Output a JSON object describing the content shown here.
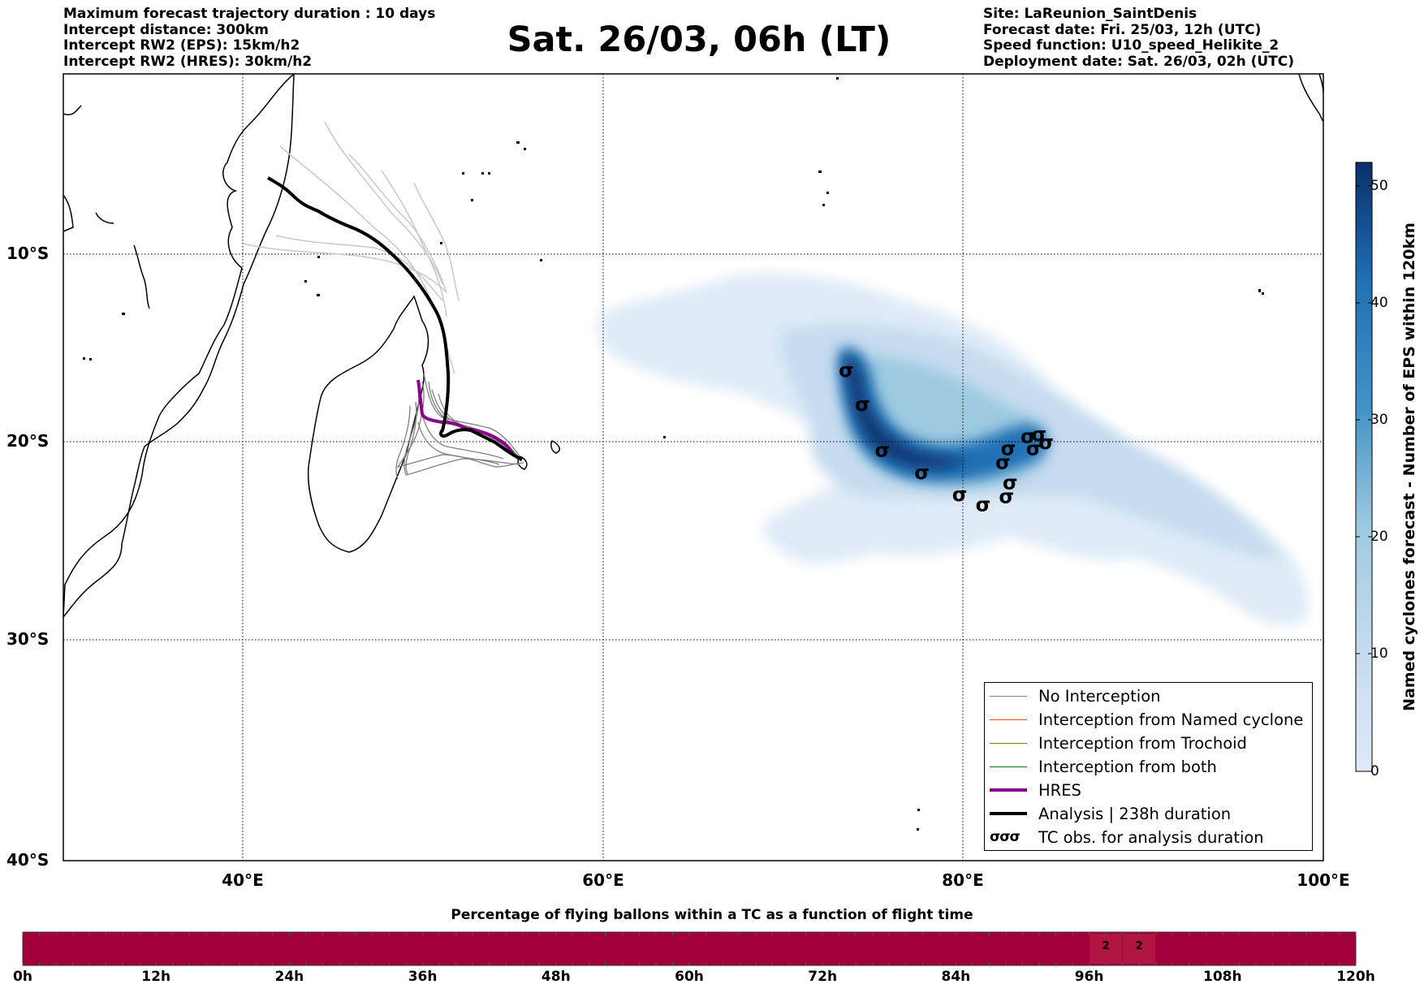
{
  "header": {
    "left": [
      "Maximum forecast trajectory duration : 10 days",
      "Intercept distance: 300km",
      "Intercept RW2 (EPS):  15km/h2",
      "Intercept RW2 (HRES): 30km/h2"
    ],
    "title": "Sat. 26/03, 06h (LT)",
    "right": [
      "Site: LaReunion_SaintDenis",
      "Forecast date: Fri. 25/03, 12h (UTC)",
      "Speed function: U10_speed_Helikite_2",
      "Deployment date: Sat. 26/03, 02h (UTC)"
    ]
  },
  "map": {
    "lat_labels": [
      "10°S",
      "20°S",
      "30°S",
      "40°S"
    ],
    "lon_labels": [
      "40°E",
      "60°E",
      "80°E",
      "100°E"
    ],
    "extent": {
      "lon": [
        30,
        100
      ],
      "lat": [
        -40,
        -0.8
      ]
    },
    "colors": {
      "analysis": "#000000",
      "hres": "#8b008b",
      "eps_gray": "#808080",
      "light_gray": "#c8c8c8"
    },
    "tc_observations": [
      {
        "lon": 73.5,
        "lat": -15.6
      },
      {
        "lon": 74.4,
        "lat": -17.3
      },
      {
        "lon": 75.5,
        "lat": -19.6
      },
      {
        "lon": 77.7,
        "lat": -20.7
      },
      {
        "lon": 79.8,
        "lat": -21.8
      },
      {
        "lon": 81.1,
        "lat": -22.3
      },
      {
        "lon": 82.4,
        "lat": -21.9
      },
      {
        "lon": 82.6,
        "lat": -21.2
      },
      {
        "lon": 82.2,
        "lat": -20.2
      },
      {
        "lon": 82.5,
        "lat": -19.5
      },
      {
        "lon": 83.6,
        "lat": -18.9
      },
      {
        "lon": 83.9,
        "lat": -19.5
      },
      {
        "lon": 84.2,
        "lat": -18.8
      },
      {
        "lon": 84.6,
        "lat": -19.2
      }
    ]
  },
  "legend": {
    "items": [
      {
        "label": "No Interception",
        "color": "#808080",
        "width": 1
      },
      {
        "label": "Interception from Named cyclone",
        "color": "#ff4500",
        "width": 1
      },
      {
        "label": "Interception from Trochoid",
        "color": "#808000",
        "width": 1
      },
      {
        "label": "Interception from both",
        "color": "#008000",
        "width": 1
      },
      {
        "label": "HRES",
        "color": "#8b008b",
        "width": 4
      },
      {
        "label": "Analysis | 238h duration",
        "color": "#000000",
        "width": 4
      },
      {
        "label": "TC obs. for analysis duration",
        "symbol": "σσσ"
      }
    ]
  },
  "colorbar": {
    "title": "Named cyclones forecast - Number of EPS within 120km",
    "ticks": [
      "50",
      "40",
      "30",
      "20",
      "10",
      "0"
    ],
    "range": [
      0,
      52
    ],
    "color_low": "#deebf7",
    "color_high": "#08306b"
  },
  "timebar": {
    "title": "Percentage of flying ballons within a TC as a function of flight time",
    "labels": [
      "0h",
      "12h",
      "24h",
      "36h",
      "48h",
      "60h",
      "72h",
      "84h",
      "96h",
      "108h",
      "120h"
    ],
    "range_hours": [
      0,
      120
    ],
    "cells": [
      {
        "hour": 97.5,
        "value": "2"
      },
      {
        "hour": 100.5,
        "value": "2"
      }
    ],
    "fill_color": "#a0003c",
    "highlight_color": "#b01440"
  }
}
